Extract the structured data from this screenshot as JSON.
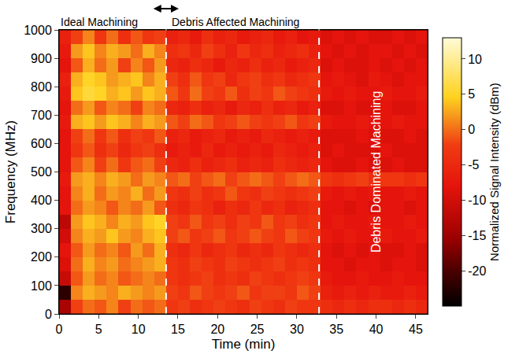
{
  "chart_data": {
    "type": "heatmap",
    "xlabel": "Time (min)",
    "ylabel": "Frequency (MHz)",
    "xlim": [
      0,
      46.5
    ],
    "ylim": [
      0,
      1000
    ],
    "xticks": [
      0,
      5,
      10,
      15,
      20,
      25,
      30,
      35,
      40,
      45
    ],
    "yticks": [
      0,
      100,
      200,
      300,
      400,
      500,
      600,
      700,
      800,
      900,
      1000
    ],
    "x": [
      0.75,
      2.25,
      3.75,
      5.25,
      6.75,
      8.25,
      9.75,
      11.25,
      12.75,
      14.25,
      15.75,
      17.25,
      18.75,
      20.25,
      21.75,
      23.25,
      24.75,
      26.25,
      27.75,
      29.25,
      30.75,
      32.25,
      33.75,
      35.25,
      36.75,
      38.25,
      39.75,
      41.25,
      42.75,
      44.25,
      45.75
    ],
    "y": [
      25,
      75,
      125,
      175,
      225,
      275,
      325,
      375,
      425,
      475,
      525,
      575,
      625,
      675,
      725,
      775,
      825,
      875,
      925,
      975
    ],
    "z": [
      [
        -14,
        -2,
        0,
        -1,
        1,
        -2,
        0,
        -1,
        0,
        -3,
        -2,
        -4,
        -3,
        -2,
        -3,
        -4,
        -2,
        -3,
        -4,
        -2,
        -3,
        -3,
        -4,
        -5,
        -4,
        -5,
        -4,
        -4,
        -5,
        -4,
        -5
      ],
      [
        -22,
        1,
        3,
        2,
        1,
        3,
        2,
        1,
        2,
        -2,
        -3,
        -1,
        -2,
        -3,
        -2,
        -1,
        -3,
        -2,
        -2,
        -3,
        -1,
        -2,
        -6,
        -7,
        -6,
        -7,
        -6,
        -7,
        -7,
        -6,
        -7
      ],
      [
        -11,
        -1,
        2,
        0,
        1,
        -1,
        0,
        1,
        0,
        -3,
        -4,
        -3,
        -2,
        -4,
        -3,
        -4,
        -2,
        -3,
        -4,
        -3,
        -2,
        -3,
        -7,
        -8,
        -8,
        -7,
        -8,
        -8,
        -7,
        -8,
        -8
      ],
      [
        -9,
        0,
        3,
        1,
        2,
        0,
        1,
        2,
        3,
        -3,
        -4,
        -2,
        -3,
        -4,
        -2,
        -3,
        -4,
        -3,
        -2,
        -4,
        -3,
        -4,
        -8,
        -8,
        -9,
        -8,
        -8,
        -9,
        -8,
        -8,
        -9
      ],
      [
        -8,
        -1,
        2,
        0,
        1,
        -1,
        2,
        0,
        3,
        -4,
        -5,
        -3,
        -5,
        -4,
        -3,
        -5,
        -4,
        -5,
        -3,
        -4,
        -5,
        -4,
        -8,
        -9,
        -8,
        -9,
        -8,
        -9,
        -9,
        -8,
        -9
      ],
      [
        -10,
        1,
        3,
        2,
        4,
        2,
        1,
        3,
        4,
        -2,
        -1,
        -3,
        -2,
        -1,
        -3,
        -2,
        -1,
        -2,
        -3,
        -1,
        -2,
        -3,
        -7,
        -8,
        -7,
        -8,
        -8,
        -7,
        -8,
        -8,
        -7
      ],
      [
        -12,
        2,
        4,
        3,
        1,
        3,
        2,
        4,
        5,
        -2,
        -3,
        -1,
        -3,
        -2,
        -4,
        -2,
        -3,
        -1,
        -3,
        -2,
        -4,
        -3,
        -8,
        -7,
        -8,
        -8,
        -7,
        -8,
        -8,
        -7,
        -8
      ],
      [
        -8,
        0,
        2,
        1,
        -1,
        1,
        0,
        2,
        -1,
        -4,
        -5,
        -3,
        -4,
        -6,
        -4,
        -5,
        -3,
        -5,
        -4,
        -6,
        -5,
        -4,
        -8,
        -8,
        -9,
        -8,
        -9,
        -8,
        -8,
        -9,
        -8
      ],
      [
        -8,
        1,
        3,
        0,
        2,
        1,
        3,
        0,
        2,
        -3,
        -4,
        -2,
        -4,
        -3,
        -1,
        -3,
        -4,
        -2,
        -3,
        -4,
        -3,
        -2,
        -7,
        -8,
        -7,
        -8,
        -7,
        -8,
        -8,
        -7,
        -8
      ],
      [
        -7,
        2,
        3,
        1,
        3,
        2,
        0,
        2,
        1,
        -1,
        0,
        -2,
        -1,
        0,
        -2,
        -1,
        0,
        -1,
        -2,
        -1,
        0,
        -1,
        -3,
        -4,
        -3,
        -2,
        -4,
        -3,
        -3,
        -4,
        -3
      ],
      [
        -8,
        -1,
        1,
        -2,
        0,
        -3,
        -1,
        0,
        -2,
        -5,
        -6,
        -4,
        -6,
        -5,
        -4,
        -6,
        -5,
        -6,
        -4,
        -5,
        -6,
        -5,
        -8,
        -9,
        -9,
        -8,
        -9,
        -9,
        -8,
        -9,
        -9
      ],
      [
        -8,
        -3,
        -1,
        -4,
        -2,
        -5,
        -3,
        -2,
        -4,
        -7,
        -6,
        -7,
        -5,
        -7,
        -6,
        -7,
        -6,
        -7,
        -5,
        -6,
        -7,
        -6,
        -9,
        -8,
        -9,
        -9,
        -9,
        -8,
        -9,
        -9,
        -9
      ],
      [
        -8,
        -2,
        0,
        -3,
        -1,
        -4,
        -2,
        -3,
        -1,
        -6,
        -5,
        -7,
        -6,
        -5,
        -7,
        -6,
        -7,
        -5,
        -6,
        -7,
        -6,
        -7,
        -9,
        -9,
        -9,
        -8,
        -9,
        -9,
        -9,
        -8,
        -9
      ],
      [
        -7,
        3,
        4,
        2,
        4,
        3,
        1,
        3,
        2,
        -1,
        -2,
        0,
        -1,
        -3,
        -2,
        -1,
        -2,
        -3,
        -2,
        -1,
        -3,
        -2,
        -7,
        -8,
        -8,
        -7,
        -8,
        -8,
        -7,
        -8,
        -8
      ],
      [
        -8,
        0,
        2,
        -1,
        1,
        0,
        -2,
        1,
        0,
        -5,
        -6,
        -4,
        -6,
        -5,
        -7,
        -5,
        -6,
        -4,
        -6,
        -5,
        -7,
        -6,
        -9,
        -9,
        -8,
        -9,
        -9,
        -8,
        -9,
        -9,
        -8
      ],
      [
        -7,
        4,
        6,
        5,
        3,
        4,
        2,
        4,
        3,
        -1,
        -3,
        0,
        -2,
        -3,
        -1,
        -4,
        -2,
        -3,
        -1,
        -2,
        -3,
        -4,
        -7,
        -8,
        -7,
        -8,
        -8,
        -7,
        -8,
        -8,
        -7
      ],
      [
        -6,
        3,
        5,
        4,
        2,
        3,
        4,
        1,
        3,
        -2,
        -4,
        -1,
        -3,
        -2,
        -5,
        -3,
        -2,
        -4,
        -3,
        -5,
        -4,
        -3,
        -8,
        -7,
        -8,
        -9,
        -7,
        -8,
        -9,
        -8,
        -8
      ],
      [
        -8,
        -1,
        3,
        0,
        2,
        -2,
        1,
        -1,
        2,
        -5,
        -6,
        -4,
        -5,
        -7,
        -5,
        -6,
        -4,
        -6,
        -5,
        -7,
        -6,
        -5,
        -9,
        -8,
        -9,
        -9,
        -8,
        -9,
        -8,
        -9,
        -8
      ],
      [
        -7,
        2,
        4,
        1,
        3,
        2,
        0,
        3,
        1,
        -4,
        -3,
        -5,
        -2,
        -4,
        -6,
        -3,
        -5,
        -4,
        -6,
        -5,
        -4,
        -6,
        -8,
        -9,
        -8,
        -9,
        -8,
        -8,
        -9,
        -8,
        -9
      ],
      [
        -6,
        -2,
        1,
        -3,
        0,
        -4,
        -1,
        -3,
        -2,
        -6,
        -5,
        -7,
        -4,
        -6,
        -5,
        -7,
        -6,
        -5,
        -7,
        -6,
        -8,
        -7,
        -9,
        -8,
        -9,
        -8,
        -9,
        -9,
        -8,
        -9,
        -8
      ]
    ],
    "colorbar": {
      "title": "Normalized Signal Intensity (dBm)",
      "range": [
        -25,
        13
      ],
      "ticks": [
        -20,
        -15,
        -10,
        -5,
        0,
        5,
        10
      ]
    },
    "vlines": [
      13.5,
      32.8
    ],
    "annotations": [
      {
        "text": "Ideal Machining",
        "x": 0
      },
      {
        "text": "Debris Affected Machining",
        "x": 14
      },
      {
        "text": "Debris Dominated Machining",
        "x": 40,
        "y": 500
      }
    ]
  }
}
